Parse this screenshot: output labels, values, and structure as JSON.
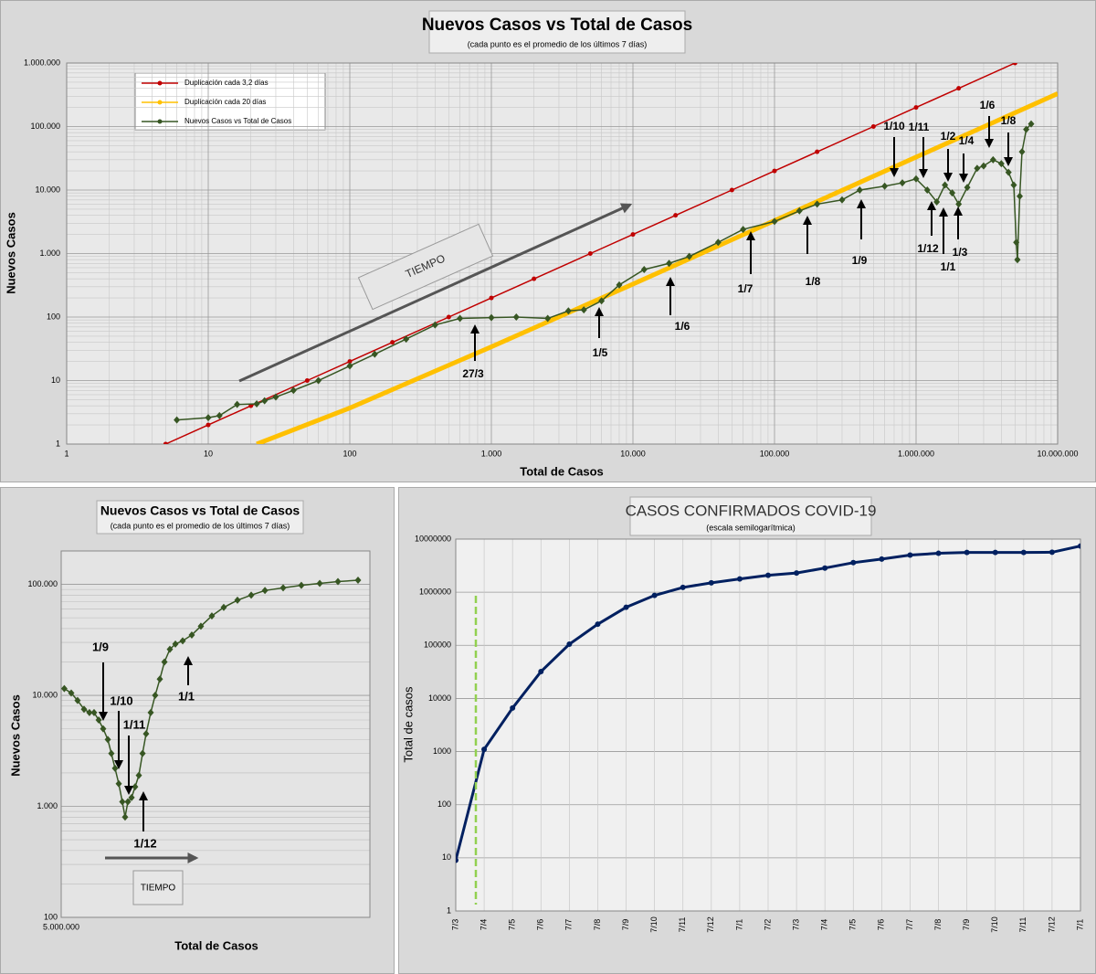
{
  "chart_data": [
    {
      "type": "line",
      "title": "Nuevos Casos vs Total de Casos",
      "subtitle": "(cada punto es el promedio de los últimos 7 días)",
      "xlabel": "Total de Casos",
      "ylabel": "Nuevos Casos",
      "xlog": true,
      "ylog": true,
      "grid": true,
      "minor_grid": true,
      "legend": "upper left",
      "xlim": [
        1,
        10000000
      ],
      "ylim": [
        1,
        1000000
      ],
      "xticks": [
        1,
        10,
        100,
        {
          "value": 1000,
          "label": "1.000"
        },
        {
          "value": 10000,
          "label": "10.000"
        },
        {
          "value": 100000,
          "label": "100.000"
        },
        {
          "value": 1000000,
          "label": "1.000.000"
        },
        {
          "value": 10000000,
          "label": "10.000.000"
        }
      ],
      "yticks": [
        1,
        10,
        100,
        {
          "value": 1000,
          "label": "1.000"
        },
        {
          "value": 10000,
          "label": "10.000"
        },
        {
          "value": 100000,
          "label": "100.000"
        },
        {
          "value": 1000000,
          "label": "1.000.000"
        }
      ],
      "series": [
        {
          "name": "Duplicación cada 3,2 días",
          "color": "#c00000",
          "x": [
            5,
            10,
            20,
            50,
            100,
            200,
            500,
            1000,
            2000,
            5000,
            10000,
            20000,
            50000,
            100000,
            200000,
            500000,
            1000000,
            2000000,
            5000000
          ],
          "values": [
            1,
            2,
            4,
            10,
            20,
            40,
            100,
            200,
            400,
            1000,
            2000,
            4000,
            10000,
            20000,
            40000,
            100000,
            200000,
            400000,
            1000000
          ]
        },
        {
          "name": "Duplicación cada 20 días",
          "color": "#ffc000",
          "x": [
            22,
            100,
            1000,
            10000,
            100000,
            1000000,
            10000000
          ],
          "values": [
            1,
            3.7,
            34,
            330,
            3300,
            33000,
            330000
          ]
        },
        {
          "name": "Nuevos Casos vs Total de Casos",
          "color": "#375623",
          "x": [
            6,
            10,
            12,
            16,
            22,
            25,
            30,
            40,
            60,
            100,
            150,
            250,
            400,
            600,
            1000,
            1500,
            2500,
            3500,
            4500,
            6000,
            8000,
            12000,
            18000,
            25000,
            40000,
            60000,
            100000,
            150000,
            200000,
            300000,
            400000,
            600000,
            800000,
            1000000,
            1200000,
            1400000,
            1600000,
            1800000,
            2000000,
            2300000,
            2700000,
            3000000,
            3500000,
            4000000,
            4500000,
            4900000,
            5100000,
            5200000,
            5400000,
            5600000,
            6000000,
            6500000
          ],
          "values": [
            2.4,
            2.6,
            2.8,
            4.2,
            4.3,
            4.8,
            5.5,
            7,
            10,
            17,
            26,
            45,
            75,
            95,
            98,
            100,
            95,
            125,
            130,
            180,
            320,
            560,
            700,
            900,
            1500,
            2400,
            3200,
            4700,
            6000,
            7000,
            10000,
            11500,
            13000,
            15000,
            10000,
            6500,
            12000,
            9000,
            6000,
            11000,
            22000,
            24000,
            30000,
            26000,
            19000,
            12000,
            1500,
            800,
            8000,
            40000,
            90000,
            110000
          ]
        }
      ],
      "annotations": [
        "27/3",
        "1/5",
        "1/6",
        "1/7",
        "1/8",
        "1/9",
        "1/10",
        "1/11",
        "1/2",
        "1/4",
        "1/12",
        "1/1",
        "1/3",
        "1/6",
        "1/8",
        "TIEMPO"
      ]
    },
    {
      "type": "line",
      "title": "Nuevos Casos vs Total de Casos",
      "subtitle": "(cada punto es el promedio de los últimos 7 días)",
      "xlabel": "Total de Casos",
      "ylabel": "Nuevos Casos",
      "xlog": false,
      "ylog": true,
      "grid": true,
      "xlim": [
        5000000,
        7000000
      ],
      "ylim": [
        100,
        200000
      ],
      "xticks": [
        {
          "value": 5000000,
          "label": "5.000.000"
        }
      ],
      "yticks": [
        100,
        {
          "value": 1000,
          "label": "1.000"
        },
        {
          "value": 10000,
          "label": "10.000"
        },
        {
          "value": 100000,
          "label": "100.000"
        }
      ],
      "series": [
        {
          "name": "Nuevos Casos vs Total de Casos",
          "color": "#375623",
          "x": [
            5020000,
            5065000,
            5106000,
            5148000,
            5183000,
            5213000,
            5243000,
            5272000,
            5302000,
            5325000,
            5349000,
            5373000,
            5396000,
            5414000,
            5432000,
            5456000,
            5479000,
            5503000,
            5527000,
            5550000,
            5580000,
            5609000,
            5639000,
            5669000,
            5704000,
            5740000,
            5787000,
            5846000,
            5905000,
            5976000,
            6053000,
            6142000,
            6231000,
            6320000,
            6438000,
            6556000,
            6675000,
            6793000,
            6923000
          ],
          "values": [
            11500,
            10500,
            9000,
            7500,
            7000,
            7000,
            6000,
            5000,
            4000,
            3000,
            2200,
            1600,
            1100,
            800,
            1100,
            1200,
            1500,
            1900,
            3000,
            4500,
            7000,
            10000,
            14000,
            20000,
            26000,
            29000,
            31000,
            35000,
            42000,
            52000,
            62000,
            72000,
            80000,
            88000,
            93000,
            98000,
            102000,
            106000,
            109000
          ]
        }
      ],
      "annotations": [
        "1/9",
        "1/10",
        "1/11",
        "1/12",
        "1/1",
        "TIEMPO"
      ]
    },
    {
      "type": "line",
      "title": "CASOS CONFIRMADOS COVID-19",
      "subtitle": "(escala semilogarítmica)",
      "ylabel": "Total de casos",
      "ylog": true,
      "grid": true,
      "ylim": [
        1,
        10000000
      ],
      "yticks": [
        1,
        10,
        100,
        1000,
        10000,
        100000,
        1000000,
        10000000
      ],
      "categories": [
        "7/3",
        "7/4",
        "7/5",
        "7/6",
        "7/7",
        "7/8",
        "7/9",
        "7/10",
        "7/11",
        "7/12",
        "7/1",
        "7/2",
        "7/3",
        "7/4",
        "7/5",
        "7/6",
        "7/7",
        "7/8",
        "7/9",
        "7/10",
        "7/11",
        "7/12",
        "7/1"
      ],
      "series": [
        {
          "name": "Total de casos",
          "color": "#002060",
          "values": [
            9,
            1100,
            6600,
            32000,
            105000,
            250000,
            520000,
            870000,
            1230000,
            1500000,
            1780000,
            2080000,
            2300000,
            2850000,
            3600000,
            4200000,
            5000000,
            5400000,
            5600000,
            5600000,
            5600000,
            5650000,
            7400000
          ]
        }
      ]
    }
  ]
}
